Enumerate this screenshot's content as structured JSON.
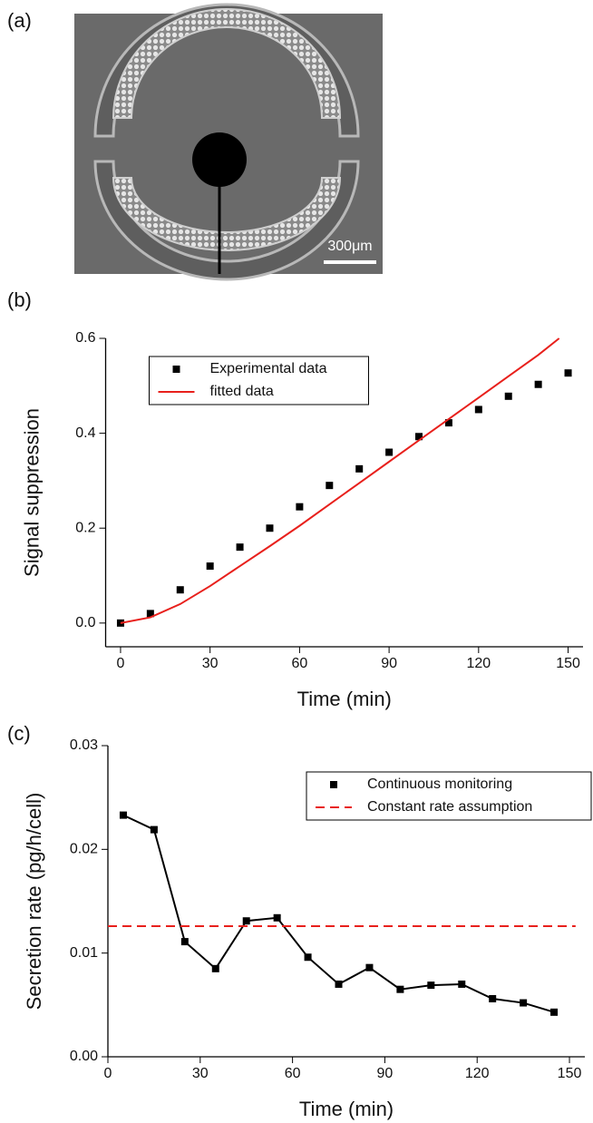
{
  "panel_labels": [
    "(a)",
    "(b)",
    "(c)"
  ],
  "image": {
    "scale_bar": "300μm"
  },
  "chart_data": [
    {
      "type": "line",
      "xlabel": "Time (min)",
      "ylabel": "Signal suppression",
      "xlim": [
        -5,
        155
      ],
      "ylim": [
        -0.05,
        0.6
      ],
      "xticks": [
        0,
        30,
        60,
        90,
        120,
        150
      ],
      "yticks": [
        {
          "value": 0,
          "label": "0.0"
        },
        0.2,
        0.4,
        0.6
      ],
      "legend": "upper left",
      "series": [
        {
          "name": "Experimental data",
          "color": "#000000",
          "mode": "markers",
          "x": [
            0,
            10,
            20,
            30,
            40,
            50,
            60,
            70,
            80,
            90,
            100,
            110,
            120,
            130,
            140,
            150
          ],
          "values": [
            0,
            0.02,
            0.07,
            0.12,
            0.16,
            0.2,
            0.245,
            0.29,
            0.325,
            0.36,
            0.393,
            0.422,
            0.45,
            0.478,
            0.503,
            0.527
          ]
        },
        {
          "name": "fitted data",
          "color": "#e8201c",
          "mode": "line",
          "x": [
            0,
            10,
            20,
            30,
            40,
            50,
            60,
            70,
            80,
            90,
            100,
            110,
            120,
            130,
            140,
            147
          ],
          "values": [
            0,
            0.012,
            0.04,
            0.078,
            0.12,
            0.162,
            0.205,
            0.25,
            0.295,
            0.34,
            0.385,
            0.43,
            0.475,
            0.52,
            0.565,
            0.6
          ]
        }
      ]
    },
    {
      "type": "line",
      "xlabel": "Time (min)",
      "ylabel": "Secretion rate (pg/h/cell)",
      "xlim": [
        0,
        155
      ],
      "ylim": [
        0,
        0.03
      ],
      "xticks": [
        0,
        30,
        60,
        90,
        120,
        150
      ],
      "yticks": [
        {
          "value": 0,
          "label": "0.00"
        },
        0.01,
        0.02,
        0.03
      ],
      "legend": "upper right",
      "series": [
        {
          "name": "Continuous monitoring",
          "color": "#000000",
          "mode": "lines+markers",
          "x": [
            5,
            15,
            25,
            35,
            45,
            55,
            65,
            75,
            85,
            95,
            105,
            115,
            125,
            135,
            145
          ],
          "values": [
            0.0233,
            0.0219,
            0.0111,
            0.0085,
            0.0131,
            0.0134,
            0.0096,
            0.007,
            0.0086,
            0.0065,
            0.0069,
            0.007,
            0.0056,
            0.0052,
            0.0043
          ]
        },
        {
          "name": "Constant rate assumption",
          "color": "#e8201c",
          "mode": "dashed",
          "x": [
            0,
            152
          ],
          "values": [
            0.0126,
            0.0126
          ]
        }
      ]
    }
  ]
}
